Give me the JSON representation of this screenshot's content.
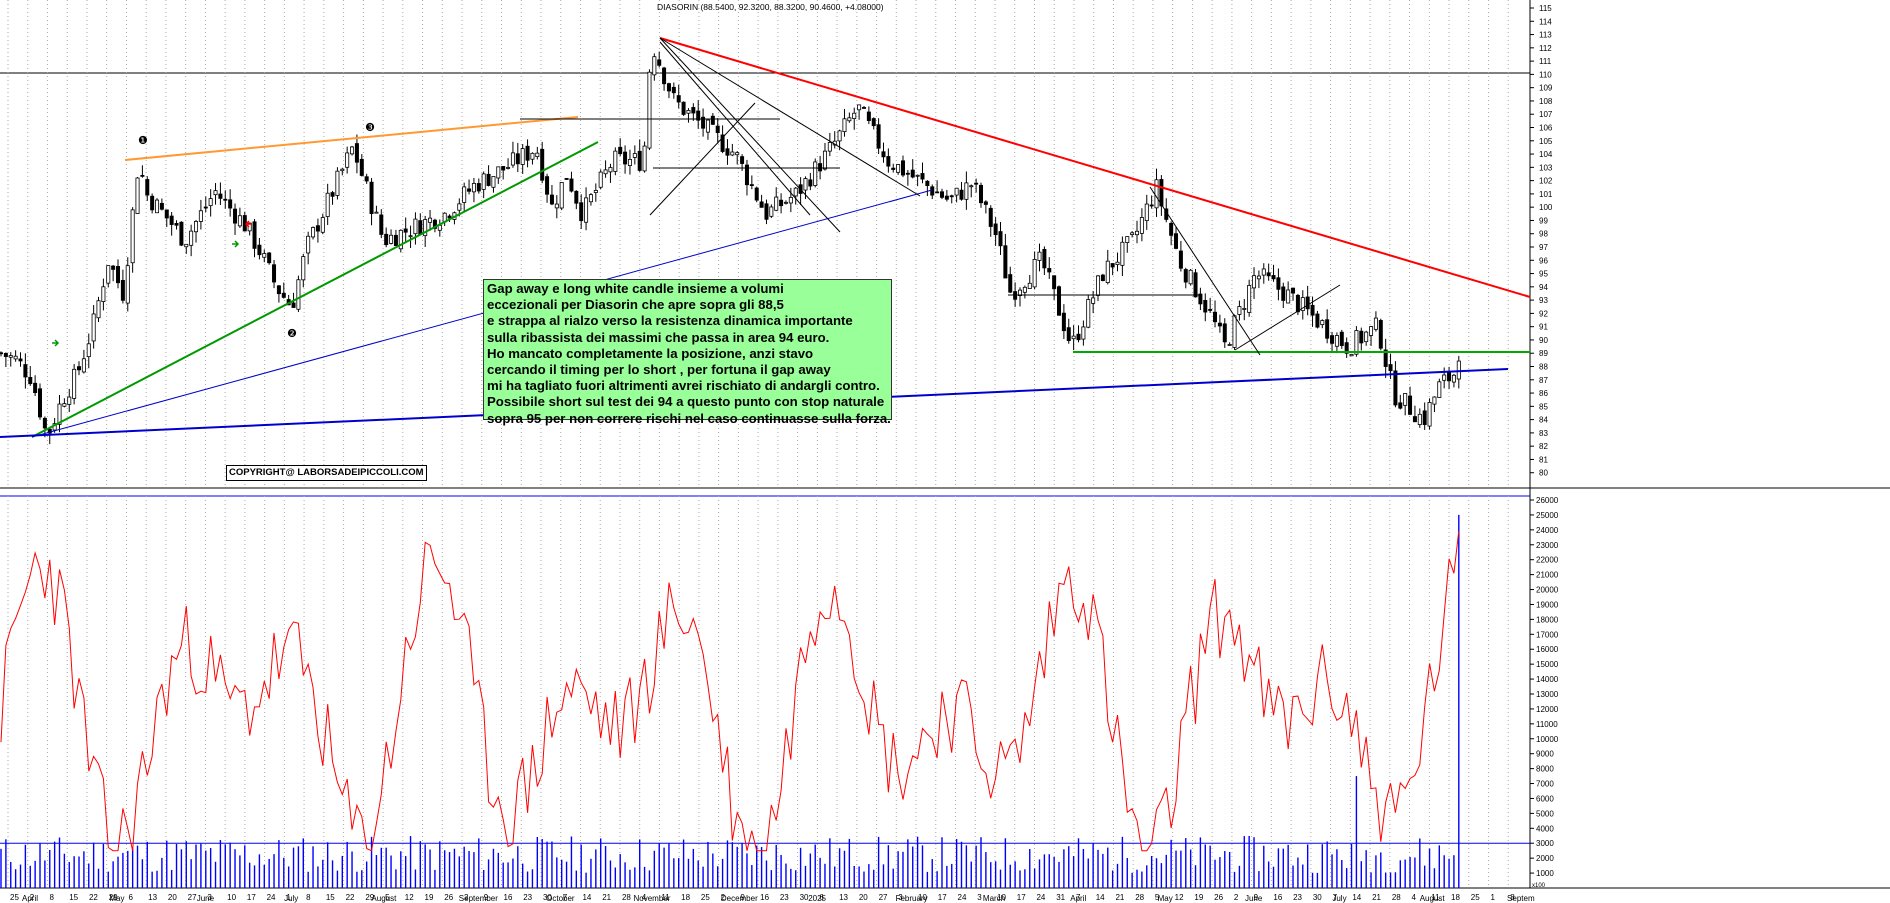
{
  "chart_data": [
    {
      "type": "candlestick",
      "title": "DIASORIN (88.5400, 92.3200, 88.3200, 90.4600, +4.08000)",
      "ylim": [
        79,
        115
      ],
      "y_ticks": [
        80,
        81,
        82,
        83,
        84,
        85,
        86,
        87,
        88,
        89,
        90,
        91,
        92,
        93,
        94,
        95,
        96,
        97,
        98,
        99,
        100,
        101,
        102,
        103,
        104,
        105,
        106,
        107,
        108,
        109,
        110,
        111,
        112,
        113,
        114,
        115
      ],
      "grid": true,
      "x_month_labels": [
        "April",
        "May",
        "June",
        "July",
        "August",
        "September",
        "October",
        "November",
        "December",
        "2025",
        "February",
        "March",
        "April",
        "May",
        "June",
        "July",
        "August",
        "Septem"
      ],
      "x_day_labels": [
        "25",
        "2",
        "8",
        "15",
        "22",
        "29",
        "6",
        "13",
        "20",
        "27",
        "3",
        "10",
        "17",
        "24",
        "1",
        "8",
        "15",
        "22",
        "29",
        "5",
        "12",
        "19",
        "26",
        "2",
        "9",
        "16",
        "23",
        "30",
        "7",
        "14",
        "21",
        "28",
        "4",
        "11",
        "18",
        "25",
        "2",
        "9",
        "16",
        "23",
        "30",
        "6",
        "13",
        "20",
        "27",
        "3",
        "10",
        "17",
        "24",
        "3",
        "10",
        "17",
        "24",
        "31",
        "7",
        "14",
        "21",
        "28",
        "5",
        "12",
        "19",
        "26",
        "2",
        "9",
        "16",
        "23",
        "30",
        "7",
        "14",
        "21",
        "28",
        "4",
        "11",
        "18",
        "25",
        "1",
        "8"
      ],
      "close_path": [
        [
          0,
          89
        ],
        [
          0.01,
          88.5
        ],
        [
          0.02,
          87.2
        ],
        [
          0.03,
          82.7
        ],
        [
          0.04,
          85.5
        ],
        [
          0.05,
          87.5
        ],
        [
          0.06,
          91
        ],
        [
          0.07,
          96
        ],
        [
          0.08,
          93.5
        ],
        [
          0.09,
          103.5
        ],
        [
          0.095,
          101
        ],
        [
          0.11,
          99
        ],
        [
          0.12,
          97.5
        ],
        [
          0.14,
          101.2
        ],
        [
          0.16,
          98.6
        ],
        [
          0.17,
          96.5
        ],
        [
          0.18,
          94
        ],
        [
          0.19,
          92.5
        ],
        [
          0.2,
          97
        ],
        [
          0.22,
          102
        ],
        [
          0.23,
          104.5
        ],
        [
          0.25,
          97.5
        ],
        [
          0.27,
          98.5
        ],
        [
          0.29,
          99.5
        ],
        [
          0.31,
          101.7
        ],
        [
          0.33,
          103
        ],
        [
          0.35,
          104.5
        ],
        [
          0.36,
          100
        ],
        [
          0.37,
          102.5
        ],
        [
          0.38,
          99.5
        ],
        [
          0.4,
          103.5
        ],
        [
          0.42,
          103.5
        ],
        [
          0.425,
          112.5
        ],
        [
          0.44,
          108
        ],
        [
          0.46,
          106
        ],
        [
          0.48,
          104
        ],
        [
          0.5,
          99.5
        ],
        [
          0.52,
          101
        ],
        [
          0.54,
          104
        ],
        [
          0.56,
          107.5
        ],
        [
          0.58,
          103.5
        ],
        [
          0.6,
          102
        ],
        [
          0.62,
          100.5
        ],
        [
          0.635,
          101.8
        ],
        [
          0.65,
          98
        ],
        [
          0.66,
          93.5
        ],
        [
          0.68,
          96
        ],
        [
          0.7,
          89.5
        ],
        [
          0.72,
          95
        ],
        [
          0.74,
          97.5
        ],
        [
          0.755,
          101.5
        ],
        [
          0.77,
          96
        ],
        [
          0.79,
          92
        ],
        [
          0.8,
          89.5
        ],
        [
          0.82,
          95
        ],
        [
          0.84,
          93.5
        ],
        [
          0.86,
          91.5
        ],
        [
          0.88,
          89.5
        ],
        [
          0.9,
          91
        ],
        [
          0.91,
          86
        ],
        [
          0.93,
          84
        ],
        [
          0.94,
          86.5
        ],
        [
          0.95,
          87.5
        ],
        [
          0.955,
          90.5
        ]
      ]
    },
    {
      "type": "volume+oscillator",
      "ylim": [
        0,
        26000
      ],
      "y_ticks": [
        1000,
        2000,
        3000,
        4000,
        5000,
        6000,
        7000,
        8000,
        9000,
        10000,
        11000,
        12000,
        13000,
        14000,
        15000,
        16000,
        17000,
        18000,
        19000,
        20000,
        21000,
        22000,
        23000,
        24000,
        25000,
        26000
      ],
      "y_axis_note": "x100",
      "oscillator_color": "#ff0000",
      "volume_color": "#0000ff"
    }
  ],
  "trendline_labels": {
    "one": "❶",
    "two": "❷",
    "three": "❸"
  },
  "annotation": {
    "lines": [
      "Gap away e long white candle insieme a volumi",
      "eccezionali per Diasorin che apre sopra gli 88,5",
      "e strappa al rialzo verso la resistenza dinamica importante",
      "sulla ribassista dei massimi che passa in area 94 euro.",
      "Ho mancato completamente la posizione, anzi stavo",
      "cercando il timing per lo short , per fortuna il gap away",
      "mi ha tagliato fuori altrimenti avrei rischiato di andargli contro.",
      "Possibile short sul test dei 94 a questo punto con stop naturale",
      "sopra 95 per non correre rischi nel caso continuasse sulla forza."
    ],
    "background": "#99ff99"
  },
  "copyright": "COPYRIGHT@ LABORSADEIPICCOLI.COM",
  "colors": {
    "red_trend": "#ff0000",
    "orange_trend": "#ff9933",
    "green_trend": "#009900",
    "blue_trend": "#0000cc",
    "support_green": "#00aa00"
  }
}
